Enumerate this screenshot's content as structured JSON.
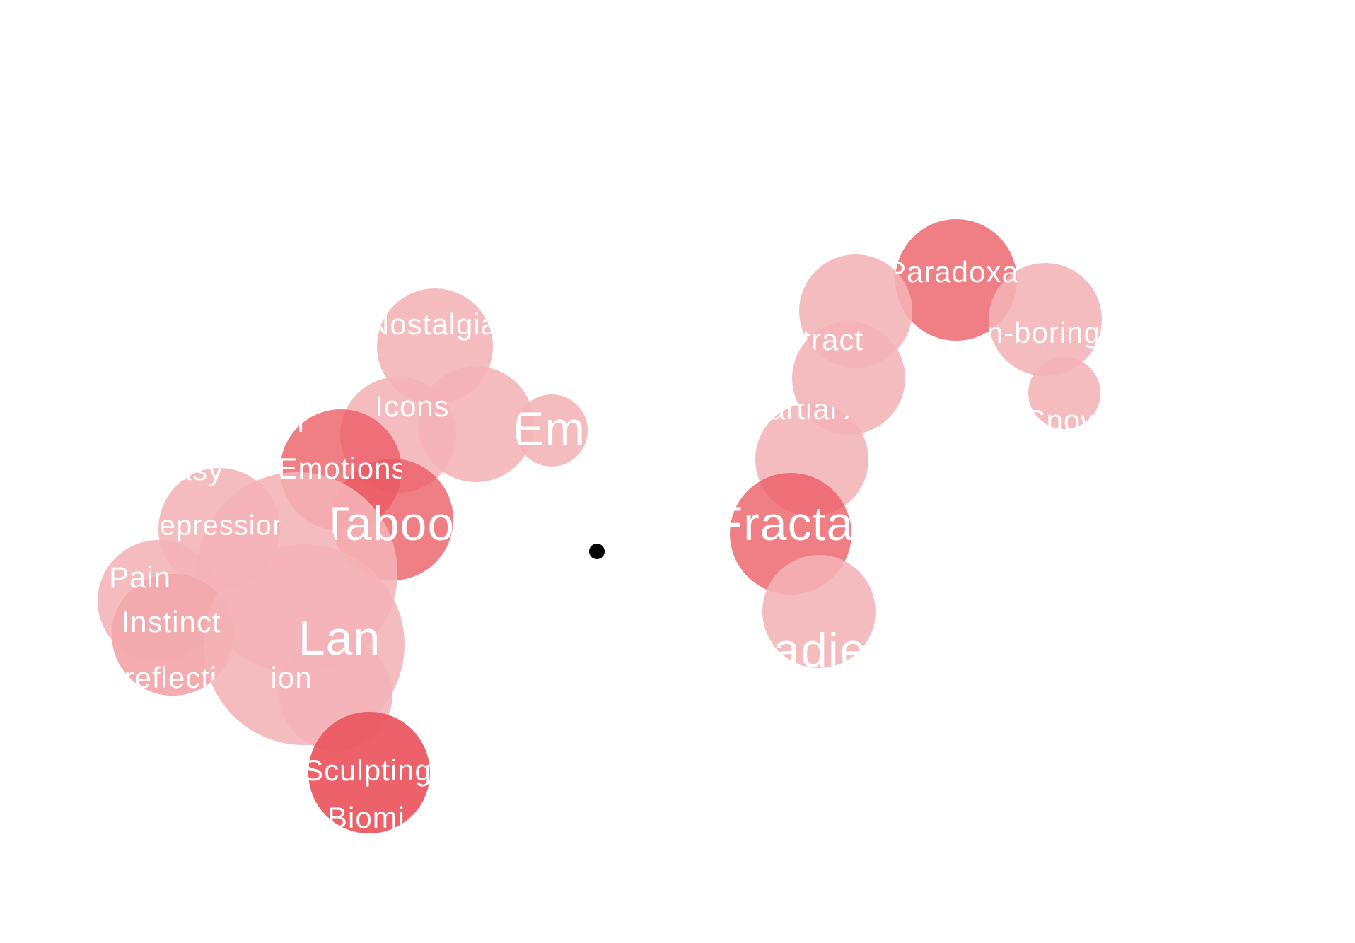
{
  "colors": {
    "light_bubble": "#f4b3b7",
    "dark_bubble": "#ec5a63",
    "label": "#ffffff",
    "center_dot": "#000000",
    "background": "#ffffff"
  },
  "bubbles": [
    {
      "label": "Nostalgia",
      "shade": "light"
    },
    {
      "label": "Icons",
      "shade": "light"
    },
    {
      "label": "",
      "shade": "light"
    },
    {
      "label": "Em",
      "shade": "light"
    },
    {
      "label": "Emotions",
      "shade": "dark"
    },
    {
      "label": "Taboo",
      "shade": "dark"
    },
    {
      "label": "",
      "shade": "light"
    },
    {
      "label": "Depression",
      "shade": "light"
    },
    {
      "label": "Pain",
      "shade": "light"
    },
    {
      "label": "Instinct",
      "shade": "dark"
    },
    {
      "label": "Self-reflection",
      "shade": "light"
    },
    {
      "label": "Lan",
      "shade": "light"
    },
    {
      "label": "",
      "shade": "light"
    },
    {
      "label": "Sculpting",
      "shade": "dark"
    },
    {
      "label": "Biomi",
      "shade": "dark"
    },
    {
      "label": "Paradoxal",
      "shade": "dark"
    },
    {
      "label": "Non-boring",
      "shade": "light"
    },
    {
      "label": "Snow",
      "shade": "light"
    },
    {
      "label": "Abstract",
      "shade": "light"
    },
    {
      "label": "",
      "shade": "light"
    },
    {
      "label": "Martial Arts",
      "shade": "light"
    },
    {
      "label": "Fractal",
      "shade": "dark"
    },
    {
      "label": "Gradient",
      "shade": "light"
    }
  ],
  "extra_labels": [
    {
      "text": "Fantasy"
    },
    {
      "text": "ion"
    },
    {
      "text": "r"
    }
  ]
}
